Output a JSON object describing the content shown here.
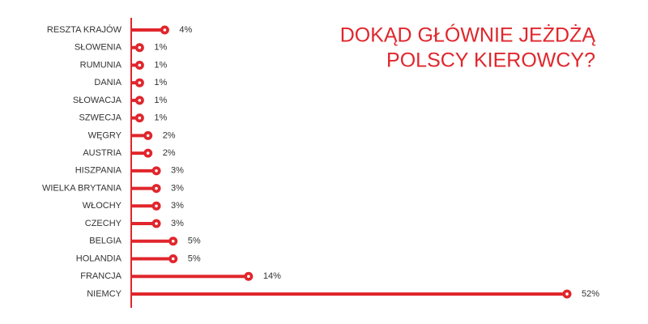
{
  "chart_data": {
    "type": "lollipop",
    "title": [
      "DOKĄD GŁÓWNIE JEŻDŻĄ",
      "POLSCY KIEROWCY?"
    ],
    "categories": [
      "RESZTA KRAJÓW",
      "SŁOWENIA",
      "RUMUNIA",
      "DANIA",
      "SŁOWACJA",
      "SZWECJA",
      "WĘGRY",
      "AUSTRIA",
      "HISZPANIA",
      "WIELKA BRYTANIA",
      "WŁOCHY",
      "CZECHY",
      "BELGIA",
      "HOLANDIA",
      "FRANCJA",
      "NIEMCY"
    ],
    "values": [
      4,
      1,
      1,
      1,
      1,
      1,
      2,
      2,
      3,
      3,
      3,
      3,
      5,
      5,
      14,
      52
    ],
    "value_labels": [
      "4%",
      "1%",
      "1%",
      "1%",
      "1%",
      "1%",
      "2%",
      "2%",
      "3%",
      "3%",
      "3%",
      "3%",
      "5%",
      "5%",
      "14%",
      "52%"
    ],
    "color": "#e0262c",
    "xlim": [
      0,
      52
    ]
  }
}
